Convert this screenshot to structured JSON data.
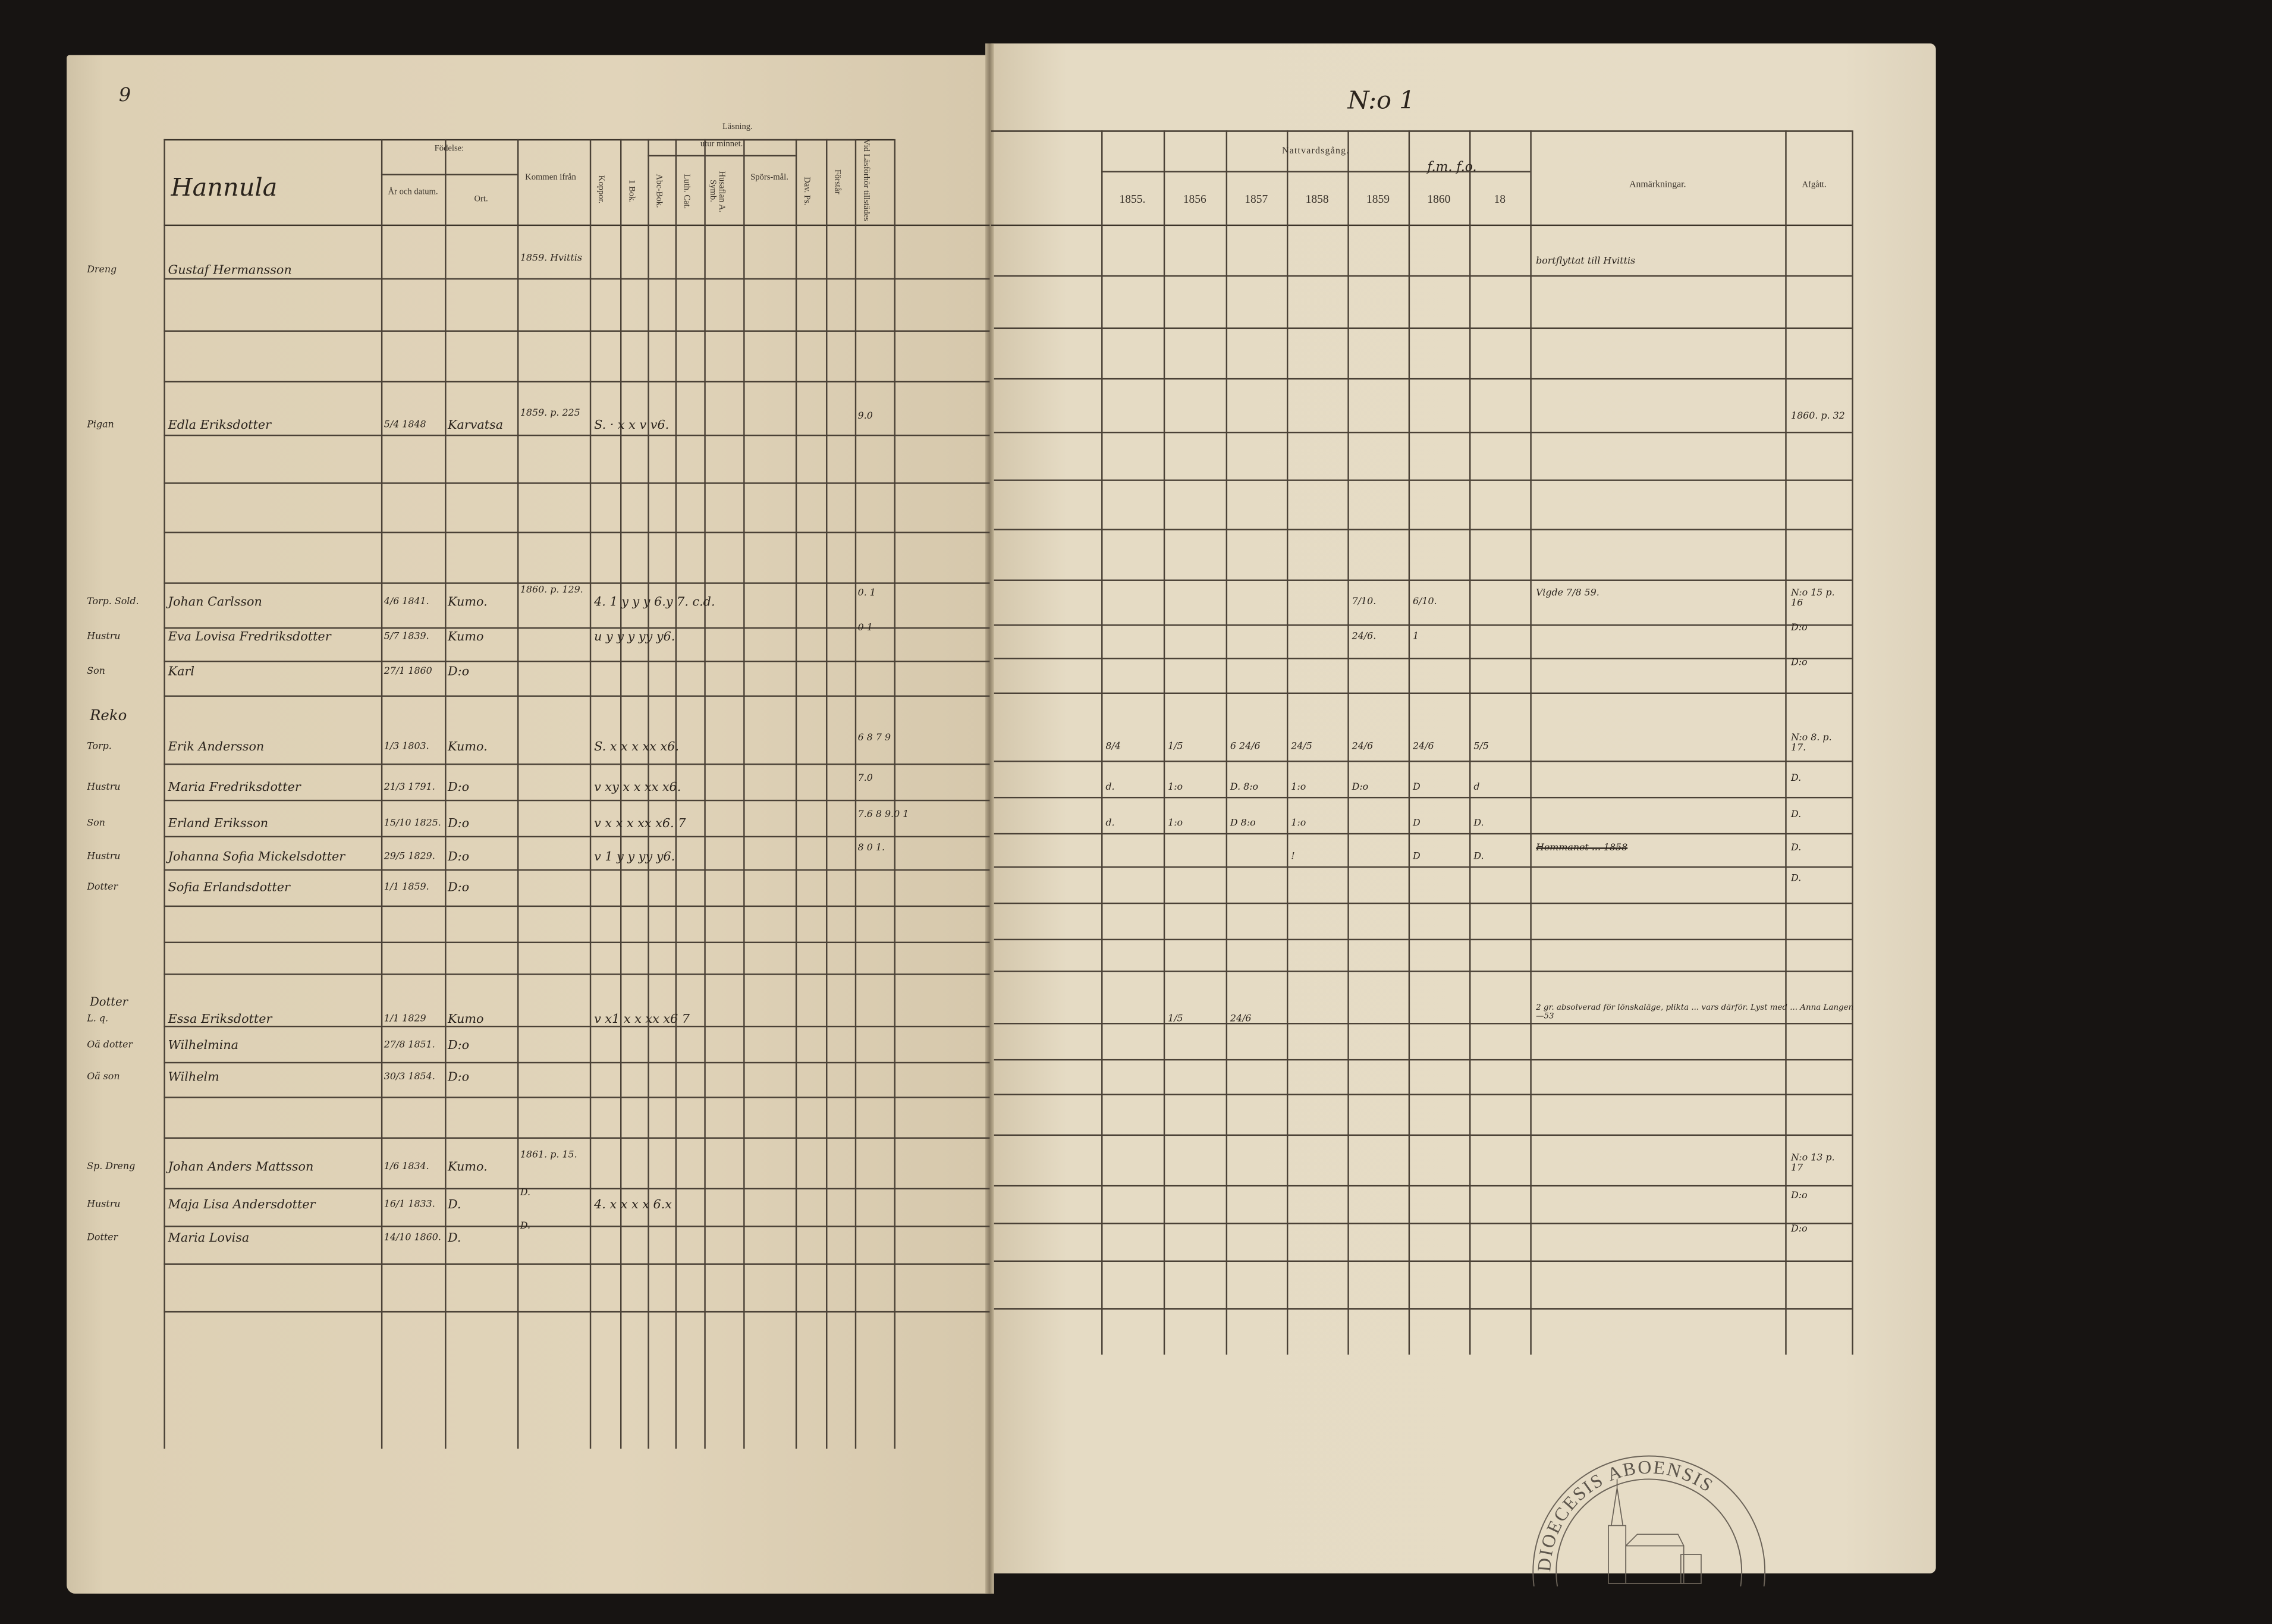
{
  "page_number": "9",
  "household_number": "N:o 1",
  "farm_name": "Hannula",
  "left_headers": {
    "fodelse": "Födelse:",
    "ar_datum": "År och datum.",
    "ort": "Ort.",
    "kommen": "Kommen ifrån",
    "koppor": "Koppor.",
    "lasning": "Läsning.",
    "utur_minnet": "utur minnet.",
    "bok1": "1 Bok.",
    "abc": "Abc-Bok.",
    "luth": "Luth. Cat.",
    "husfl": "Husaflan A. Symb.",
    "spors": "Spörs-mål.",
    "dav": "Dav. Ps.",
    "forstar": "Förstår",
    "lasforhor": "Vid Läsförhör tillstädes"
  },
  "right_headers": {
    "nattvard": "Nattvardsgång.",
    "years": [
      "1855.",
      "1856",
      "1857",
      "1858",
      "1859",
      "1860",
      "18"
    ],
    "years_note": "f.m. f.o.",
    "anmarkningar": "Anmärkningar.",
    "afgatt": "Afgått."
  },
  "section_labels": {
    "reko": "Reko",
    "dotter": "Dotter"
  },
  "entries": [
    {
      "role": "Dreng",
      "name": "Gustaf Hermansson",
      "date": "",
      "ort": "",
      "kommen": "1859. Hvittis",
      "reading": "",
      "lasforhor": "",
      "communion": [
        "",
        "",
        "",
        "",
        "",
        "",
        ""
      ],
      "remark": "bortflyttat till Hvittis",
      "afgatt": ""
    },
    {
      "role": "Pigan",
      "name": "Edla Eriksdotter",
      "date": "5/4 1848",
      "ort": "Karvatsa",
      "kommen": "1859. p. 225",
      "reading": "S. · x x v v6.",
      "lasforhor": "9.0",
      "communion": [
        "",
        "",
        "",
        "",
        "",
        "",
        ""
      ],
      "remark": "",
      "afgatt": "1860. p. 32"
    },
    {
      "role": "Torp. Sold.",
      "name": "Johan Carlsson",
      "date": "4/6 1841.",
      "ort": "Kumo.",
      "kommen": "1860. p. 129.",
      "reading": "4. 1 y y y 6.y 7. c.d.",
      "lasforhor": "0. 1",
      "communion": [
        "",
        "",
        "",
        "",
        "7/10.",
        "6/10.",
        ""
      ],
      "remark": "Vigde 7/8 59.",
      "afgatt": "N:o 15 p. 16"
    },
    {
      "role": "Hustru",
      "name": "Eva Lovisa Fredriksdotter",
      "date": "5/7 1839.",
      "ort": "Kumo",
      "kommen": "",
      "reading": "u y y y yy y6.",
      "lasforhor": "0 1",
      "communion": [
        "",
        "",
        "",
        "",
        "24/6.",
        "1",
        ""
      ],
      "remark": "",
      "afgatt": "D:o"
    },
    {
      "role": "Son",
      "name": "Karl",
      "date": "27/1 1860",
      "ort": "D:o",
      "kommen": "",
      "reading": "",
      "lasforhor": "",
      "communion": [
        "",
        "",
        "",
        "",
        "",
        "",
        ""
      ],
      "remark": "",
      "afgatt": "D:o"
    },
    {
      "role": "Torp.",
      "name": "Erik Andersson",
      "date": "1/3 1803.",
      "ort": "Kumo.",
      "kommen": "",
      "reading": "S. x x x xx x6.",
      "lasforhor": "6 8 7 9",
      "communion": [
        "8/4",
        "1/5",
        "6 24/6",
        "24/5",
        "24/6",
        "24/6",
        "5/5"
      ],
      "remark": "",
      "afgatt": "N:o 8. p. 17."
    },
    {
      "role": "Hustru",
      "name": "Maria Fredriksdotter",
      "date": "21/3 1791.",
      "ort": "D:o",
      "kommen": "",
      "reading": "v xy x x xx x6.",
      "lasforhor": "7.0",
      "communion": [
        "d.",
        "1:o",
        "D. 8:o",
        "1:o",
        "D:o",
        "D",
        "d"
      ],
      "remark": "",
      "afgatt": "D."
    },
    {
      "role": "Son",
      "name": "Erland Eriksson",
      "date": "15/10 1825.",
      "ort": "D:o",
      "kommen": "",
      "reading": "v x x x xx x6. 7",
      "lasforhor": "7.6 8 9.0 1",
      "communion": [
        "d.",
        "1:o",
        "D 8:o",
        "1:o",
        "",
        "D",
        "D."
      ],
      "remark": "",
      "afgatt": "D."
    },
    {
      "role": "Hustru",
      "name": "Johanna Sofia Mickelsdotter",
      "date": "29/5 1829.",
      "ort": "D:o",
      "kommen": "",
      "reading": "v 1 y y yy y6.",
      "lasforhor": "8 0 1.",
      "communion": [
        "",
        "",
        "",
        "!",
        "",
        "D",
        "D."
      ],
      "remark": "Hemmanet ... 1858",
      "afgatt": "D."
    },
    {
      "role": "Dotter",
      "name": "Sofia Erlandsdotter",
      "date": "1/1 1859.",
      "ort": "D:o",
      "kommen": "",
      "reading": "",
      "lasforhor": "",
      "communion": [
        "",
        "",
        "",
        "",
        "",
        "",
        ""
      ],
      "remark": "",
      "afgatt": "D."
    },
    {
      "role": "L. q.",
      "name": "Essa Eriksdotter",
      "date": "1/1 1829",
      "ort": "Kumo",
      "kommen": "",
      "reading": "v x1 x x xx x6 7",
      "lasforhor": "",
      "communion": [
        "",
        "1/5",
        "24/6",
        "",
        "",
        "",
        ""
      ],
      "remark": "2 gr. absolverad för lönskaläge, plikta ... vars därför. Lyst med ... Anna Langen —53",
      "afgatt": ""
    },
    {
      "role": "Oä dotter",
      "name": "Wilhelmina",
      "date": "27/8 1851.",
      "ort": "D:o",
      "kommen": "",
      "reading": "",
      "lasforhor": "",
      "communion": [
        "",
        "",
        "",
        "",
        "",
        "",
        ""
      ],
      "remark": "",
      "afgatt": ""
    },
    {
      "role": "Oä son",
      "name": "Wilhelm",
      "date": "30/3 1854.",
      "ort": "D:o",
      "kommen": "",
      "reading": "",
      "lasforhor": "",
      "communion": [
        "",
        "",
        "",
        "",
        "",
        "",
        ""
      ],
      "remark": "",
      "afgatt": ""
    },
    {
      "role": "Sp. Dreng",
      "name": "Johan Anders Mattsson",
      "date": "1/6 1834.",
      "ort": "Kumo.",
      "kommen": "1861. p. 15.",
      "reading": "",
      "lasforhor": "",
      "communion": [
        "",
        "",
        "",
        "",
        "",
        "",
        ""
      ],
      "remark": "",
      "afgatt": "N:o 13 p. 17"
    },
    {
      "role": "Hustru",
      "name": "Maja Lisa Andersdotter",
      "date": "16/1 1833.",
      "ort": "D.",
      "kommen": "D.",
      "reading": "4. x x x x 6.x",
      "lasforhor": "",
      "communion": [
        "",
        "",
        "",
        "",
        "",
        "",
        ""
      ],
      "remark": "",
      "afgatt": "D:o"
    },
    {
      "role": "Dotter",
      "name": "Maria Lovisa",
      "date": "14/10 1860.",
      "ort": "D.",
      "kommen": "D.",
      "reading": "",
      "lasforhor": "",
      "communion": [
        "",
        "",
        "",
        "",
        "",
        "",
        ""
      ],
      "remark": "",
      "afgatt": "D:o"
    }
  ],
  "stamp_text": "DIOECESIS ABOENSIS",
  "colors": {
    "paper": "#e3d8c0",
    "ink": "#2a231c",
    "background": "#171412"
  }
}
